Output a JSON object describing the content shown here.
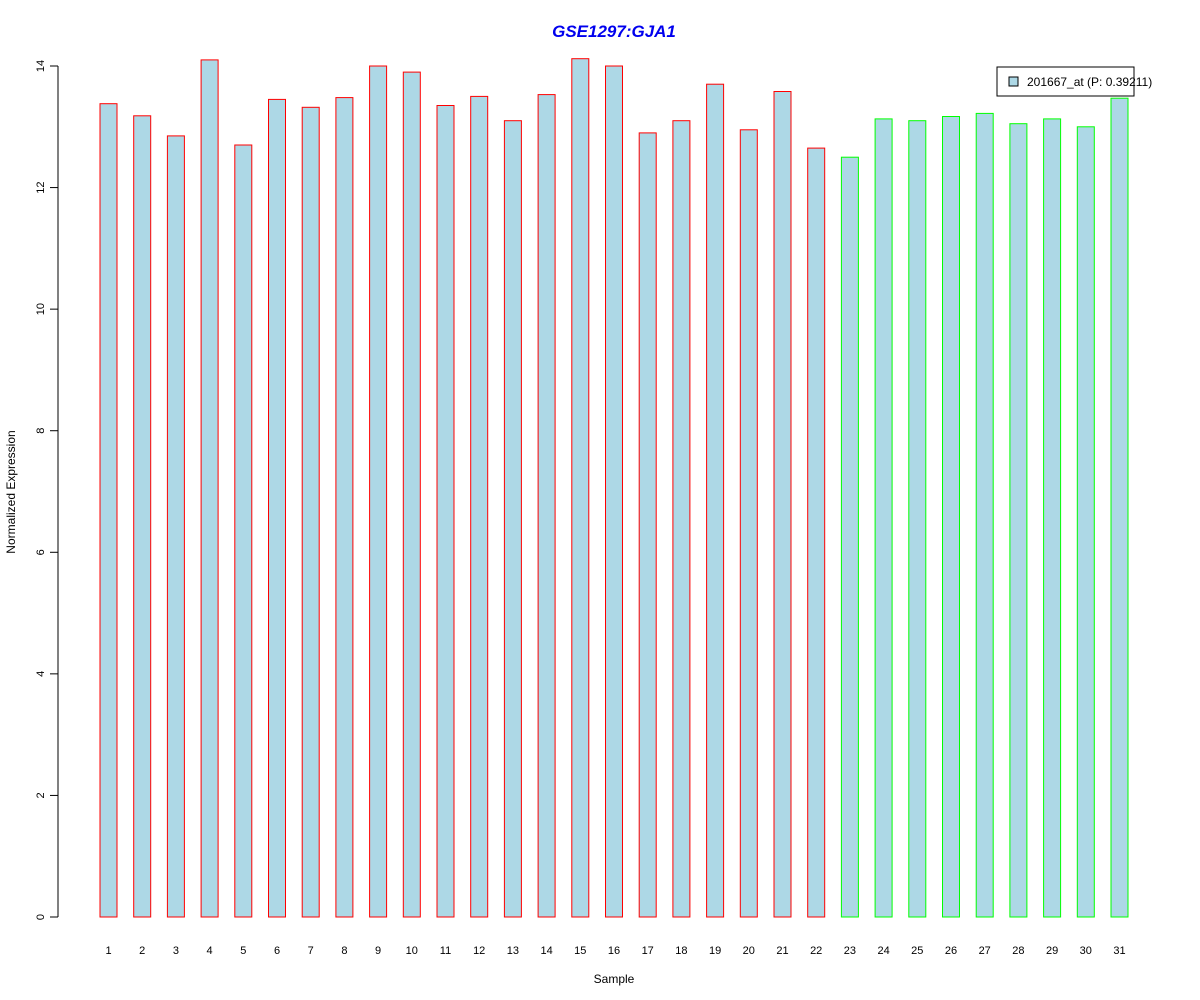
{
  "chart_data": {
    "type": "bar",
    "title": "GSE1297:GJA1",
    "title_color": "#0000ee",
    "xlabel": "Sample",
    "ylabel": "Normalized Expression",
    "ylim": [
      0,
      14
    ],
    "yticks": [
      0,
      2,
      4,
      6,
      8,
      10,
      12,
      14
    ],
    "categories": [
      "1",
      "2",
      "3",
      "4",
      "5",
      "6",
      "7",
      "8",
      "9",
      "10",
      "11",
      "12",
      "13",
      "14",
      "15",
      "16",
      "17",
      "18",
      "19",
      "20",
      "21",
      "22",
      "23",
      "24",
      "25",
      "26",
      "27",
      "28",
      "29",
      "30",
      "31"
    ],
    "values": [
      13.38,
      13.18,
      12.85,
      14.1,
      12.7,
      13.45,
      13.32,
      13.48,
      14.0,
      13.9,
      13.35,
      13.5,
      13.1,
      13.53,
      14.12,
      14.0,
      12.9,
      13.1,
      13.7,
      12.95,
      13.58,
      12.65,
      12.5,
      13.13,
      13.1,
      13.17,
      13.22,
      13.05,
      13.13,
      13.0,
      13.47
    ],
    "bar_fill": "#add8e6",
    "group_1": {
      "count": 22,
      "outline": "#ff0000"
    },
    "group_2": {
      "count": 9,
      "outline": "#00ff00"
    },
    "legend": {
      "position": "top-right",
      "label": "201667_at (P: 0.39211)",
      "swatch_fill": "#add8e6"
    },
    "grid": false
  }
}
